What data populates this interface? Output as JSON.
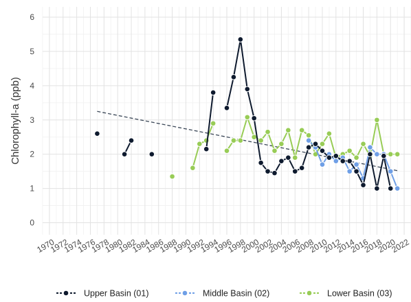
{
  "chart_data": {
    "type": "line",
    "title": "",
    "xlabel": "",
    "ylabel": "Chlorophyll-a (ppb)",
    "xlim": [
      1969,
      2023
    ],
    "ylim": [
      -0.35,
      6.3
    ],
    "x_ticks": [
      1970,
      1972,
      1974,
      1976,
      1978,
      1980,
      1982,
      1984,
      1986,
      1988,
      1990,
      1992,
      1994,
      1996,
      1998,
      2000,
      2002,
      2004,
      2006,
      2008,
      2010,
      2012,
      2014,
      2016,
      2018,
      2020,
      2022
    ],
    "y_ticks": [
      0,
      1,
      2,
      3,
      4,
      5,
      6
    ],
    "grid": true,
    "legend_position": "bottom",
    "trend_line": {
      "x": [
        1977,
        2021
      ],
      "y": [
        3.25,
        1.52
      ],
      "style": "dashed",
      "color": "#3a4656"
    },
    "series": [
      {
        "name": "Upper Basin (01)",
        "color": "#0e1a2e",
        "segments": [
          [
            [
              1977,
              2.6
            ]
          ],
          [
            [
              1981,
              2.0
            ],
            [
              1982,
              2.4
            ]
          ],
          [
            [
              1985,
              2.0
            ]
          ],
          [
            [
              1993,
              2.15
            ],
            [
              1994,
              3.8
            ]
          ],
          [
            [
              1996,
              3.35
            ],
            [
              1997,
              4.25
            ],
            [
              1998,
              5.35
            ],
            [
              1999,
              3.9
            ],
            [
              2000,
              3.05
            ],
            [
              2001,
              1.75
            ],
            [
              2002,
              1.5
            ],
            [
              2003,
              1.45
            ],
            [
              2004,
              1.8
            ],
            [
              2005,
              1.9
            ],
            [
              2006,
              1.5
            ],
            [
              2007,
              1.6
            ],
            [
              2008,
              2.2
            ],
            [
              2009,
              2.3
            ],
            [
              2010,
              2.1
            ],
            [
              2011,
              1.9
            ],
            [
              2012,
              1.95
            ],
            [
              2013,
              1.8
            ],
            [
              2014,
              1.8
            ],
            [
              2015,
              1.5
            ],
            [
              2016,
              1.1
            ],
            [
              2017,
              2.0
            ],
            [
              2018,
              1.0
            ],
            [
              2019,
              1.95
            ],
            [
              2020,
              1.0
            ]
          ]
        ]
      },
      {
        "name": "Middle Basin (02)",
        "color": "#6f9fe6",
        "segments": [
          [
            [
              2008,
              2.4
            ],
            [
              2009,
              2.2
            ],
            [
              2010,
              1.7
            ],
            [
              2011,
              2.0
            ],
            [
              2012,
              1.8
            ],
            [
              2013,
              1.9
            ],
            [
              2014,
              1.5
            ],
            [
              2015,
              1.7
            ],
            [
              2016,
              1.3
            ],
            [
              2017,
              2.2
            ],
            [
              2018,
              2.0
            ],
            [
              2019,
              2.0
            ],
            [
              2020,
              1.5
            ],
            [
              2021,
              1.0
            ]
          ]
        ]
      },
      {
        "name": "Lower Basin (03)",
        "color": "#98cc56",
        "segments": [
          [
            [
              1988,
              1.35
            ]
          ],
          [
            [
              1991,
              1.6
            ],
            [
              1992,
              2.3
            ],
            [
              1993,
              2.4
            ],
            [
              1994,
              2.9
            ]
          ],
          [
            [
              1996,
              2.1
            ],
            [
              1997,
              2.4
            ],
            [
              1998,
              2.4
            ],
            [
              1999,
              3.08
            ],
            [
              2000,
              2.5
            ],
            [
              2001,
              2.4
            ],
            [
              2002,
              2.65
            ],
            [
              2003,
              2.1
            ],
            [
              2004,
              2.3
            ],
            [
              2005,
              2.7
            ],
            [
              2006,
              1.9
            ],
            [
              2007,
              2.7
            ],
            [
              2008,
              2.55
            ],
            [
              2009,
              2.0
            ],
            [
              2010,
              2.3
            ],
            [
              2011,
              2.6
            ],
            [
              2012,
              1.9
            ],
            [
              2013,
              2.0
            ],
            [
              2014,
              2.1
            ],
            [
              2015,
              1.9
            ],
            [
              2016,
              2.3
            ],
            [
              2017,
              1.95
            ],
            [
              2018,
              3.0
            ],
            [
              2019,
              2.0
            ],
            [
              2020,
              2.0
            ],
            [
              2021,
              2.0
            ]
          ]
        ]
      }
    ]
  }
}
